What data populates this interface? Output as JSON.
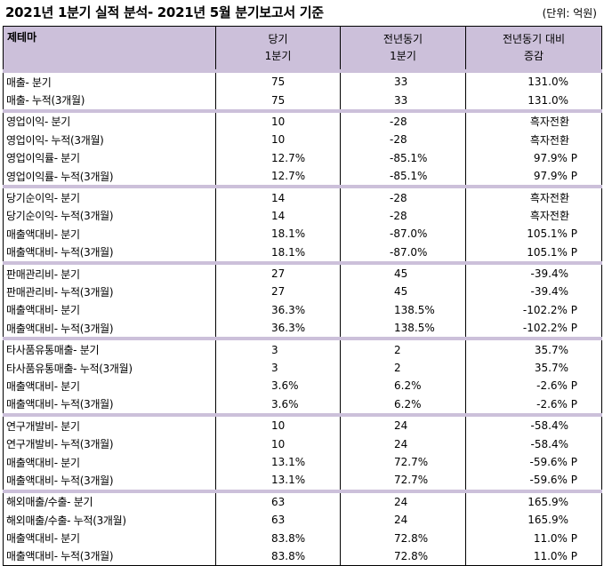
{
  "title": "2021년 1분기 실적 분석- 2021년 5월 분기보고서 기준",
  "unit": "(단위: 억원)",
  "header": {
    "col1": "제테마",
    "col2_line1": "당기",
    "col2_line2": "1분기",
    "col3_line1": "전년동기",
    "col3_line2": "1분기",
    "col4_line1": "전년동기 대비",
    "col4_line2": "증감"
  },
  "groups": [
    {
      "rows": [
        {
          "label": "매출- 분기",
          "current": "75",
          "prior": "33",
          "change": "131.0%"
        },
        {
          "label": "매출- 누적(3개월)",
          "current": "75",
          "prior": "33",
          "change": "131.0%"
        }
      ]
    },
    {
      "rows": [
        {
          "label": "영업이익- 분기",
          "current": "10",
          "prior": "-28",
          "change": "흑자전환"
        },
        {
          "label": "영업이익- 누적(3개월)",
          "current": "10",
          "prior": "-28",
          "change": "흑자전환"
        },
        {
          "label": "영업이익률- 분기",
          "current": "12.7%",
          "prior": "-85.1%",
          "change": "97.9% P"
        },
        {
          "label": "영업이익률- 누적(3개월)",
          "current": "12.7%",
          "prior": "-85.1%",
          "change": "97.9% P"
        }
      ]
    },
    {
      "rows": [
        {
          "label": "당기순이익- 분기",
          "current": "14",
          "prior": "-28",
          "change": "흑자전환"
        },
        {
          "label": "당기순이익- 누적(3개월)",
          "current": "14",
          "prior": "-28",
          "change": "흑자전환"
        },
        {
          "label": "매출액대비- 분기",
          "current": "18.1%",
          "prior": "-87.0%",
          "change": "105.1% P"
        },
        {
          "label": "매출액대비- 누적(3개월)",
          "current": "18.1%",
          "prior": "-87.0%",
          "change": "105.1% P"
        }
      ]
    },
    {
      "rows": [
        {
          "label": "판매관리비- 분기",
          "current": "27",
          "prior": "45",
          "change": "-39.4%"
        },
        {
          "label": "판매관리비- 누적(3개월)",
          "current": "27",
          "prior": "45",
          "change": "-39.4%"
        },
        {
          "label": "매출액대비- 분기",
          "current": "36.3%",
          "prior": "138.5%",
          "change": "-102.2% P"
        },
        {
          "label": "매출액대비- 누적(3개월)",
          "current": "36.3%",
          "prior": "138.5%",
          "change": "-102.2% P"
        }
      ]
    },
    {
      "rows": [
        {
          "label": "타사품유통매출- 분기",
          "current": "3",
          "prior": "2",
          "change": "35.7%"
        },
        {
          "label": "타사품유통매출- 누적(3개월)",
          "current": "3",
          "prior": "2",
          "change": "35.7%"
        },
        {
          "label": "매출액대비- 분기",
          "current": "3.6%",
          "prior": "6.2%",
          "change": "-2.6% P"
        },
        {
          "label": "매출액대비- 누적(3개월)",
          "current": "3.6%",
          "prior": "6.2%",
          "change": "-2.6% P"
        }
      ]
    },
    {
      "rows": [
        {
          "label": "연구개발비- 분기",
          "current": "10",
          "prior": "24",
          "change": "-58.4%"
        },
        {
          "label": "연구개발비- 누적(3개월)",
          "current": "10",
          "prior": "24",
          "change": "-58.4%"
        },
        {
          "label": "매출액대비- 분기",
          "current": "13.1%",
          "prior": "72.7%",
          "change": "-59.6% P"
        },
        {
          "label": "매출액대비- 누적(3개월)",
          "current": "13.1%",
          "prior": "72.7%",
          "change": "-59.6% P"
        }
      ]
    },
    {
      "rows": [
        {
          "label": "해외매출/수출- 분기",
          "current": "63",
          "prior": "24",
          "change": "165.9%"
        },
        {
          "label": "해외매출/수출- 누적(3개월)",
          "current": "63",
          "prior": "24",
          "change": "165.9%"
        },
        {
          "label": "매출액대비- 분기",
          "current": "83.8%",
          "prior": "72.8%",
          "change": "11.0% P"
        },
        {
          "label": "매출액대비- 누적(3개월)",
          "current": "83.8%",
          "prior": "72.8%",
          "change": "11.0% P"
        }
      ]
    }
  ]
}
